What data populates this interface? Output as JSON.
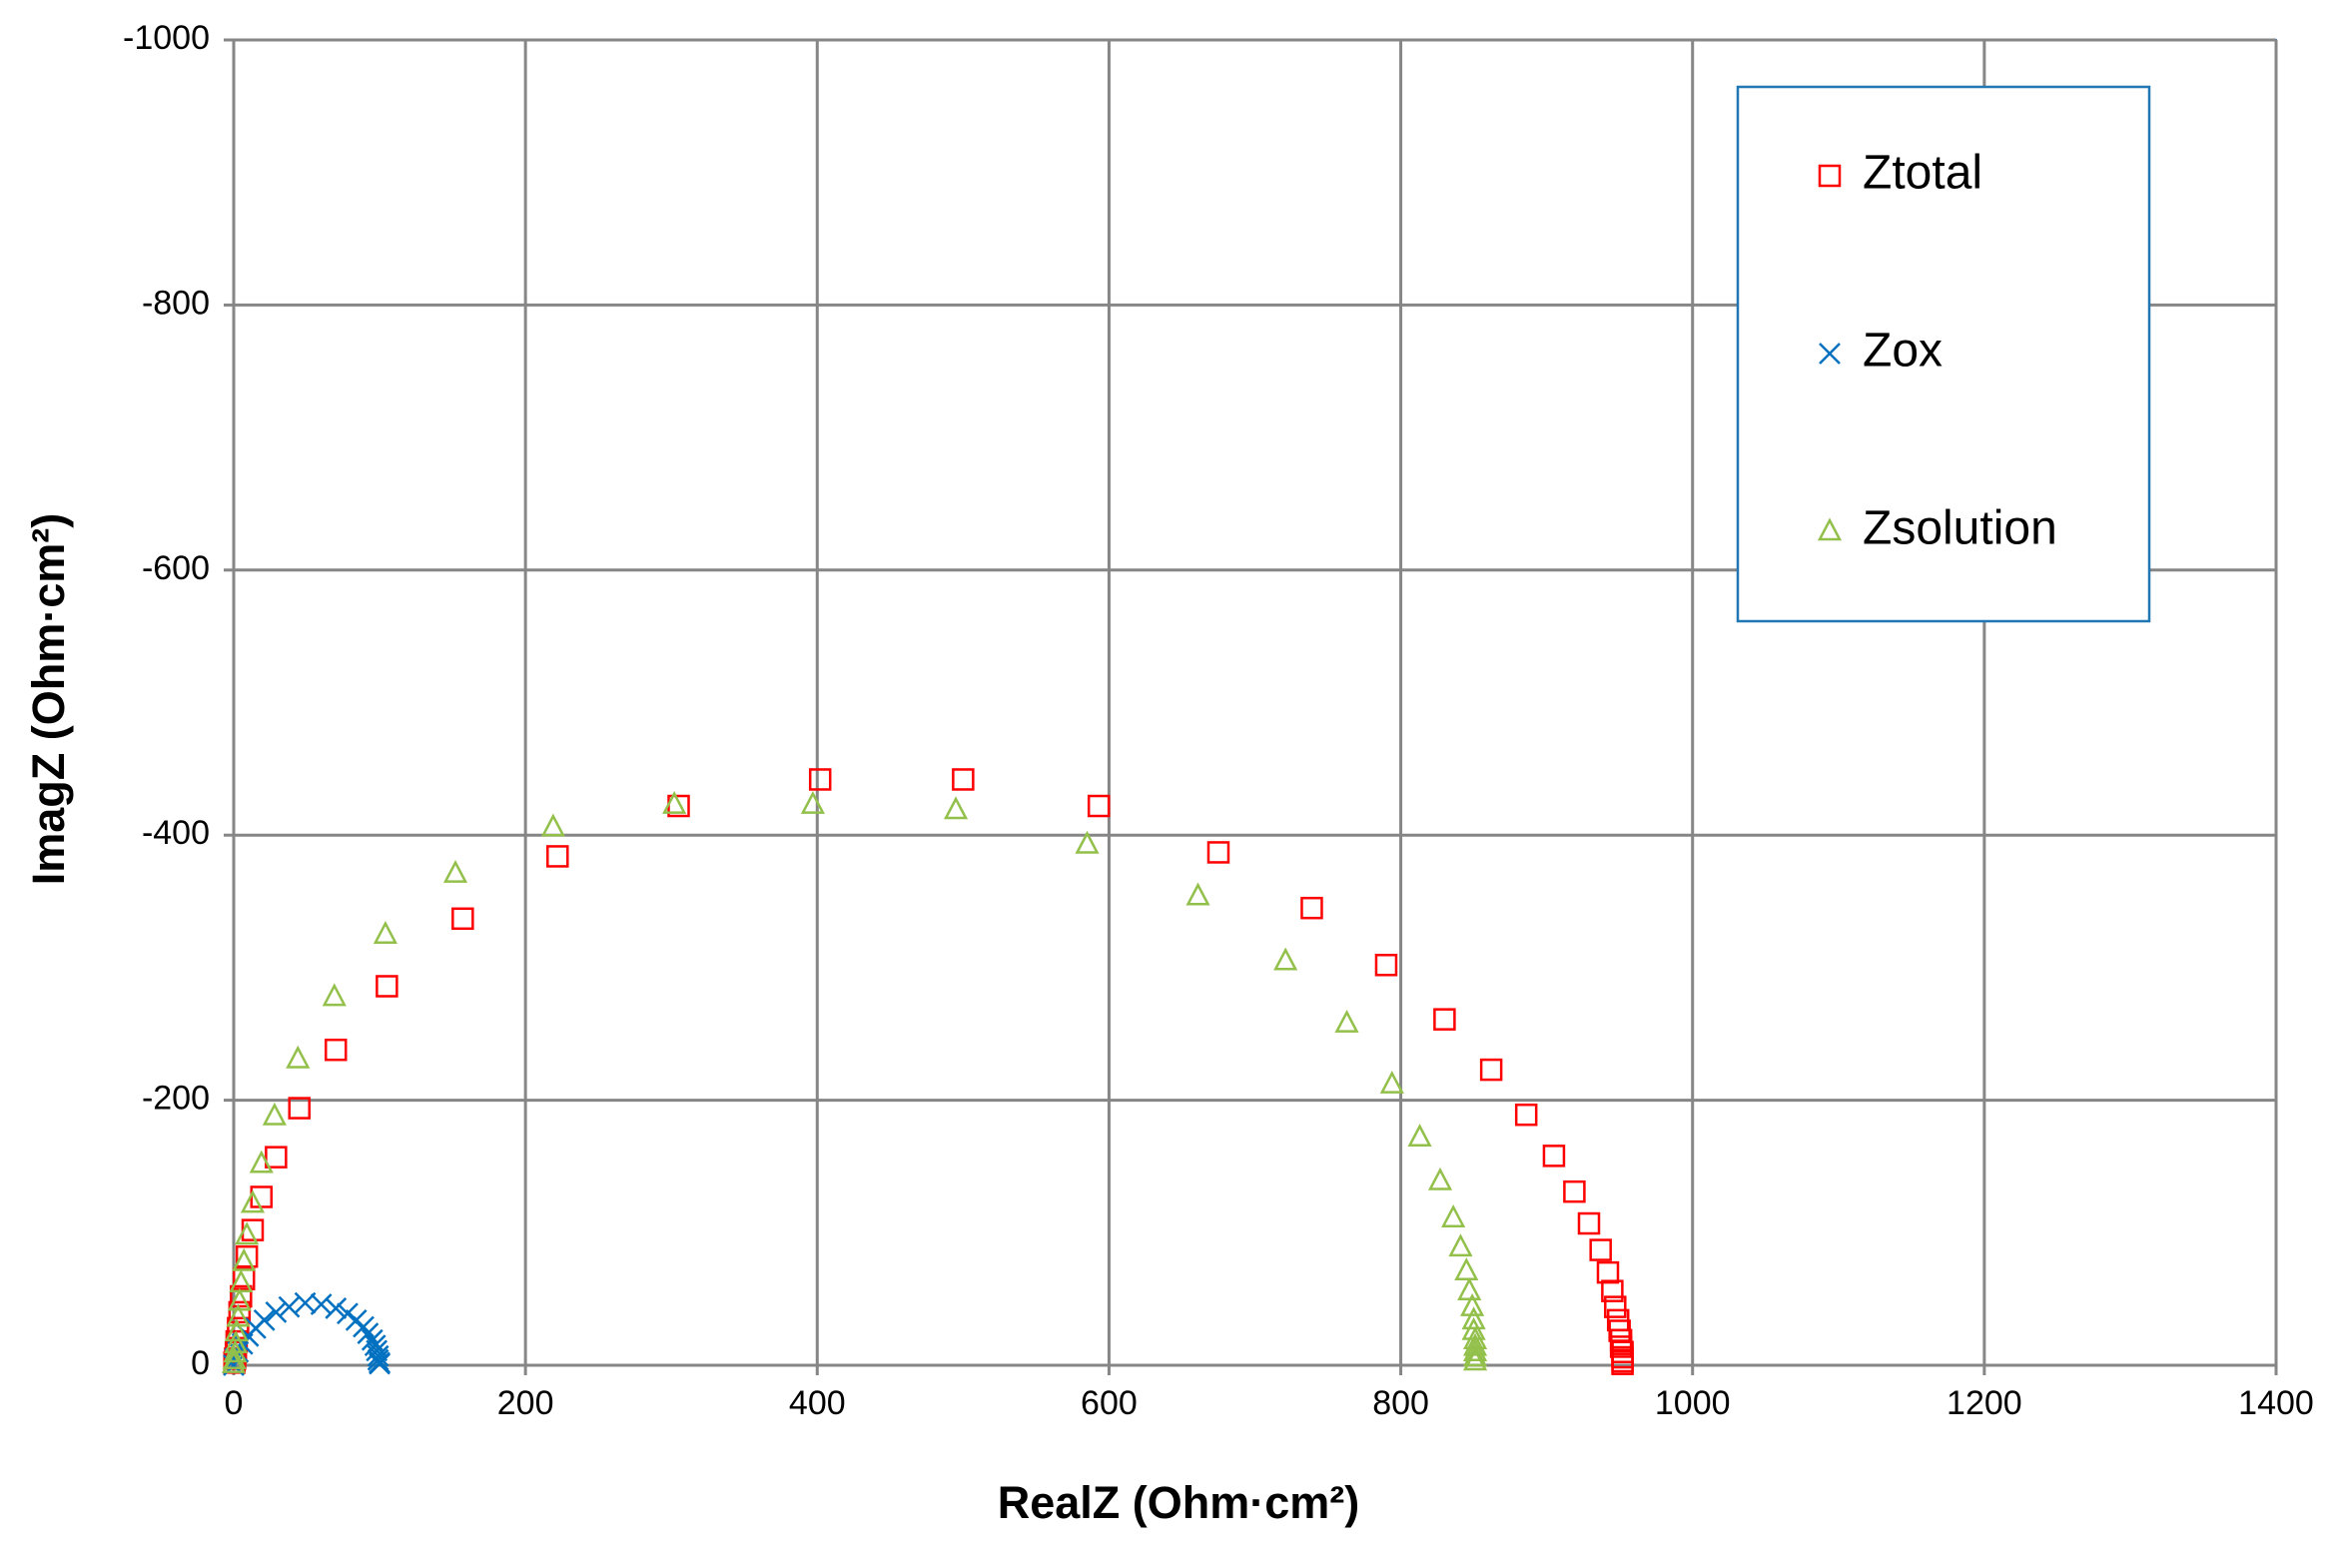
{
  "chart_data": {
    "type": "scatter",
    "x_label": "RealZ (Ohm·cm²)",
    "y_label": "ImagZ (Ohm·cm²)",
    "xlim": [
      0,
      1400
    ],
    "xticks": [
      0,
      200,
      400,
      600,
      800,
      1000,
      1200,
      1400
    ],
    "ylim": [
      0,
      -1000
    ],
    "yticks": [
      0,
      -200,
      -400,
      -600,
      -800,
      -1000
    ],
    "grid": true,
    "legend": "upper right",
    "series": [
      {
        "name": "Ztotal",
        "color": "#ff0000",
        "marker": "square",
        "x": [
          0.5,
          1,
          1.5,
          2,
          3,
          4,
          5,
          7,
          9,
          13,
          19,
          29,
          45,
          70,
          105,
          157,
          222,
          305,
          402,
          500,
          593,
          675,
          739,
          790,
          830,
          862,
          886,
          905,
          919,
          929,
          937,
          942,
          945,
          947,
          949,
          950,
          951,
          951,
          952,
          952,
          952,
          952
        ],
        "values": [
          -2,
          -5,
          -10,
          -18,
          -28,
          -40,
          -52,
          -65,
          -82,
          -102,
          -127,
          -157,
          -194,
          -238,
          -286,
          -337,
          -384,
          -422,
          -442,
          -442,
          -422,
          -387,
          -345,
          -302,
          -261,
          -223,
          -189,
          -158,
          -131,
          -107,
          -87,
          -70,
          -56,
          -44,
          -34,
          -26,
          -19,
          -14,
          -10,
          -6,
          -3,
          -1
        ]
      },
      {
        "name": "Zox",
        "color": "#0070c0",
        "marker": "x",
        "x": [
          0,
          1,
          3,
          6,
          10,
          15,
          21,
          29,
          38,
          49,
          60,
          70,
          78,
          84,
          89,
          92,
          95,
          97,
          98,
          99,
          99,
          100,
          100
        ],
        "values": [
          0,
          -5,
          -10,
          -16,
          -22,
          -28,
          -34,
          -40,
          -44,
          -47,
          -46,
          -43,
          -39,
          -34,
          -29,
          -24,
          -19,
          -15,
          -11,
          -7,
          -4,
          -2,
          -1
        ]
      },
      {
        "name": "Zsolution",
        "color": "#92c04a",
        "marker": "triangle",
        "x": [
          0,
          0.5,
          1,
          1.5,
          2,
          3,
          4,
          5,
          7,
          9,
          13,
          19,
          28,
          44,
          69,
          104,
          152,
          219,
          302,
          397,
          495,
          585,
          661,
          721,
          763,
          794,
          813,
          827,
          836,
          841,
          845,
          847,
          849,
          850,
          850,
          851,
          851,
          851,
          851,
          851
        ],
        "values": [
          -1,
          -4,
          -9,
          -16,
          -25,
          -36,
          -48,
          -62,
          -78,
          -98,
          -122,
          -152,
          -188,
          -231,
          -278,
          -325,
          -371,
          -406,
          -423,
          -423,
          -419,
          -393,
          -354,
          -305,
          -258,
          -212,
          -172,
          -139,
          -111,
          -89,
          -71,
          -56,
          -44,
          -34,
          -26,
          -19,
          -14,
          -10,
          -6,
          -3
        ]
      }
    ]
  }
}
